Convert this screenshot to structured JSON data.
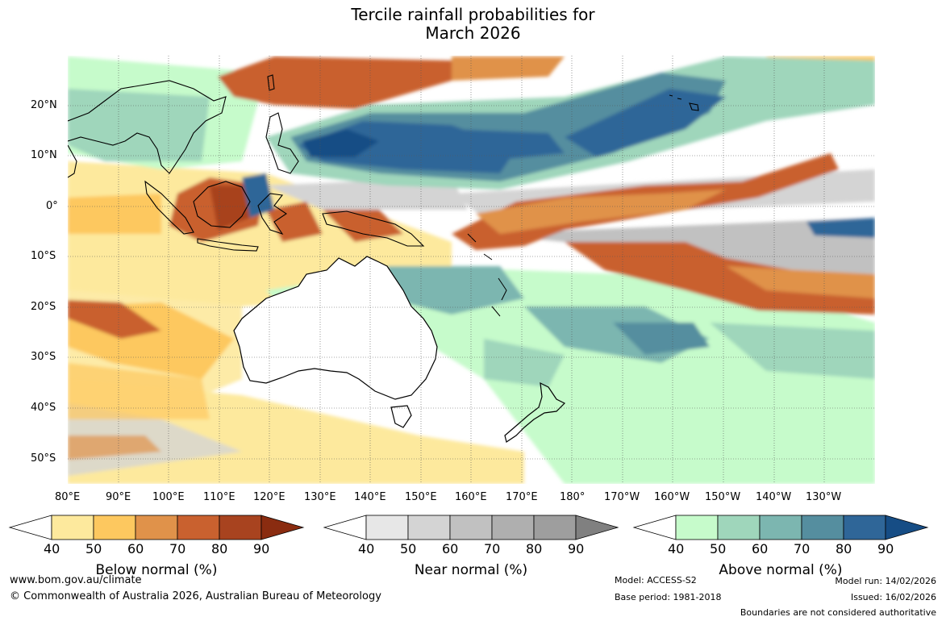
{
  "title": {
    "line1": "Tercile rainfall probabilities for",
    "line2": "March 2026"
  },
  "map": {
    "lat_labels": [
      "20°N",
      "10°N",
      "0°",
      "10°S",
      "20°S",
      "30°S",
      "40°S",
      "50°S"
    ],
    "lon_labels": [
      "80°E",
      "90°E",
      "100°E",
      "110°E",
      "120°E",
      "130°E",
      "140°E",
      "150°E",
      "160°E",
      "170°E",
      "180°",
      "170°W",
      "160°W",
      "150°W",
      "140°W",
      "130°W"
    ]
  },
  "colorbars": [
    {
      "caption": "Below normal (%)",
      "ticks": [
        "40",
        "50",
        "60",
        "70",
        "80",
        "90"
      ],
      "colors": [
        "#ffffff",
        "#fde99d",
        "#fdc85f",
        "#e0924a",
        "#c9612f",
        "#a8431f",
        "#8a2c10"
      ]
    },
    {
      "caption": "Near normal (%)",
      "ticks": [
        "40",
        "50",
        "60",
        "70",
        "80",
        "90"
      ],
      "colors": [
        "#ffffff",
        "#e7e7e7",
        "#d4d4d4",
        "#c1c1c1",
        "#afafaf",
        "#9e9e9e",
        "#808080"
      ]
    },
    {
      "caption": "Above normal (%)",
      "ticks": [
        "40",
        "50",
        "60",
        "70",
        "80",
        "90"
      ],
      "colors": [
        "#ffffff",
        "#c6fbcb",
        "#9fd6bb",
        "#7cb6b0",
        "#558e9f",
        "#2f6698",
        "#164d85"
      ]
    }
  ],
  "footer": {
    "url": "www.bom.gov.au/climate",
    "copyright": "© Commonwealth of Australia 2026, Australian Bureau of Meteorology",
    "model": "Model: ACCESS-S2",
    "base_period": "Base period: 1981-2018",
    "model_run": "Model run: 14/02/2026",
    "issued": "Issued: 16/02/2026",
    "disclaimer": "Boundaries are not considered authoritative"
  }
}
